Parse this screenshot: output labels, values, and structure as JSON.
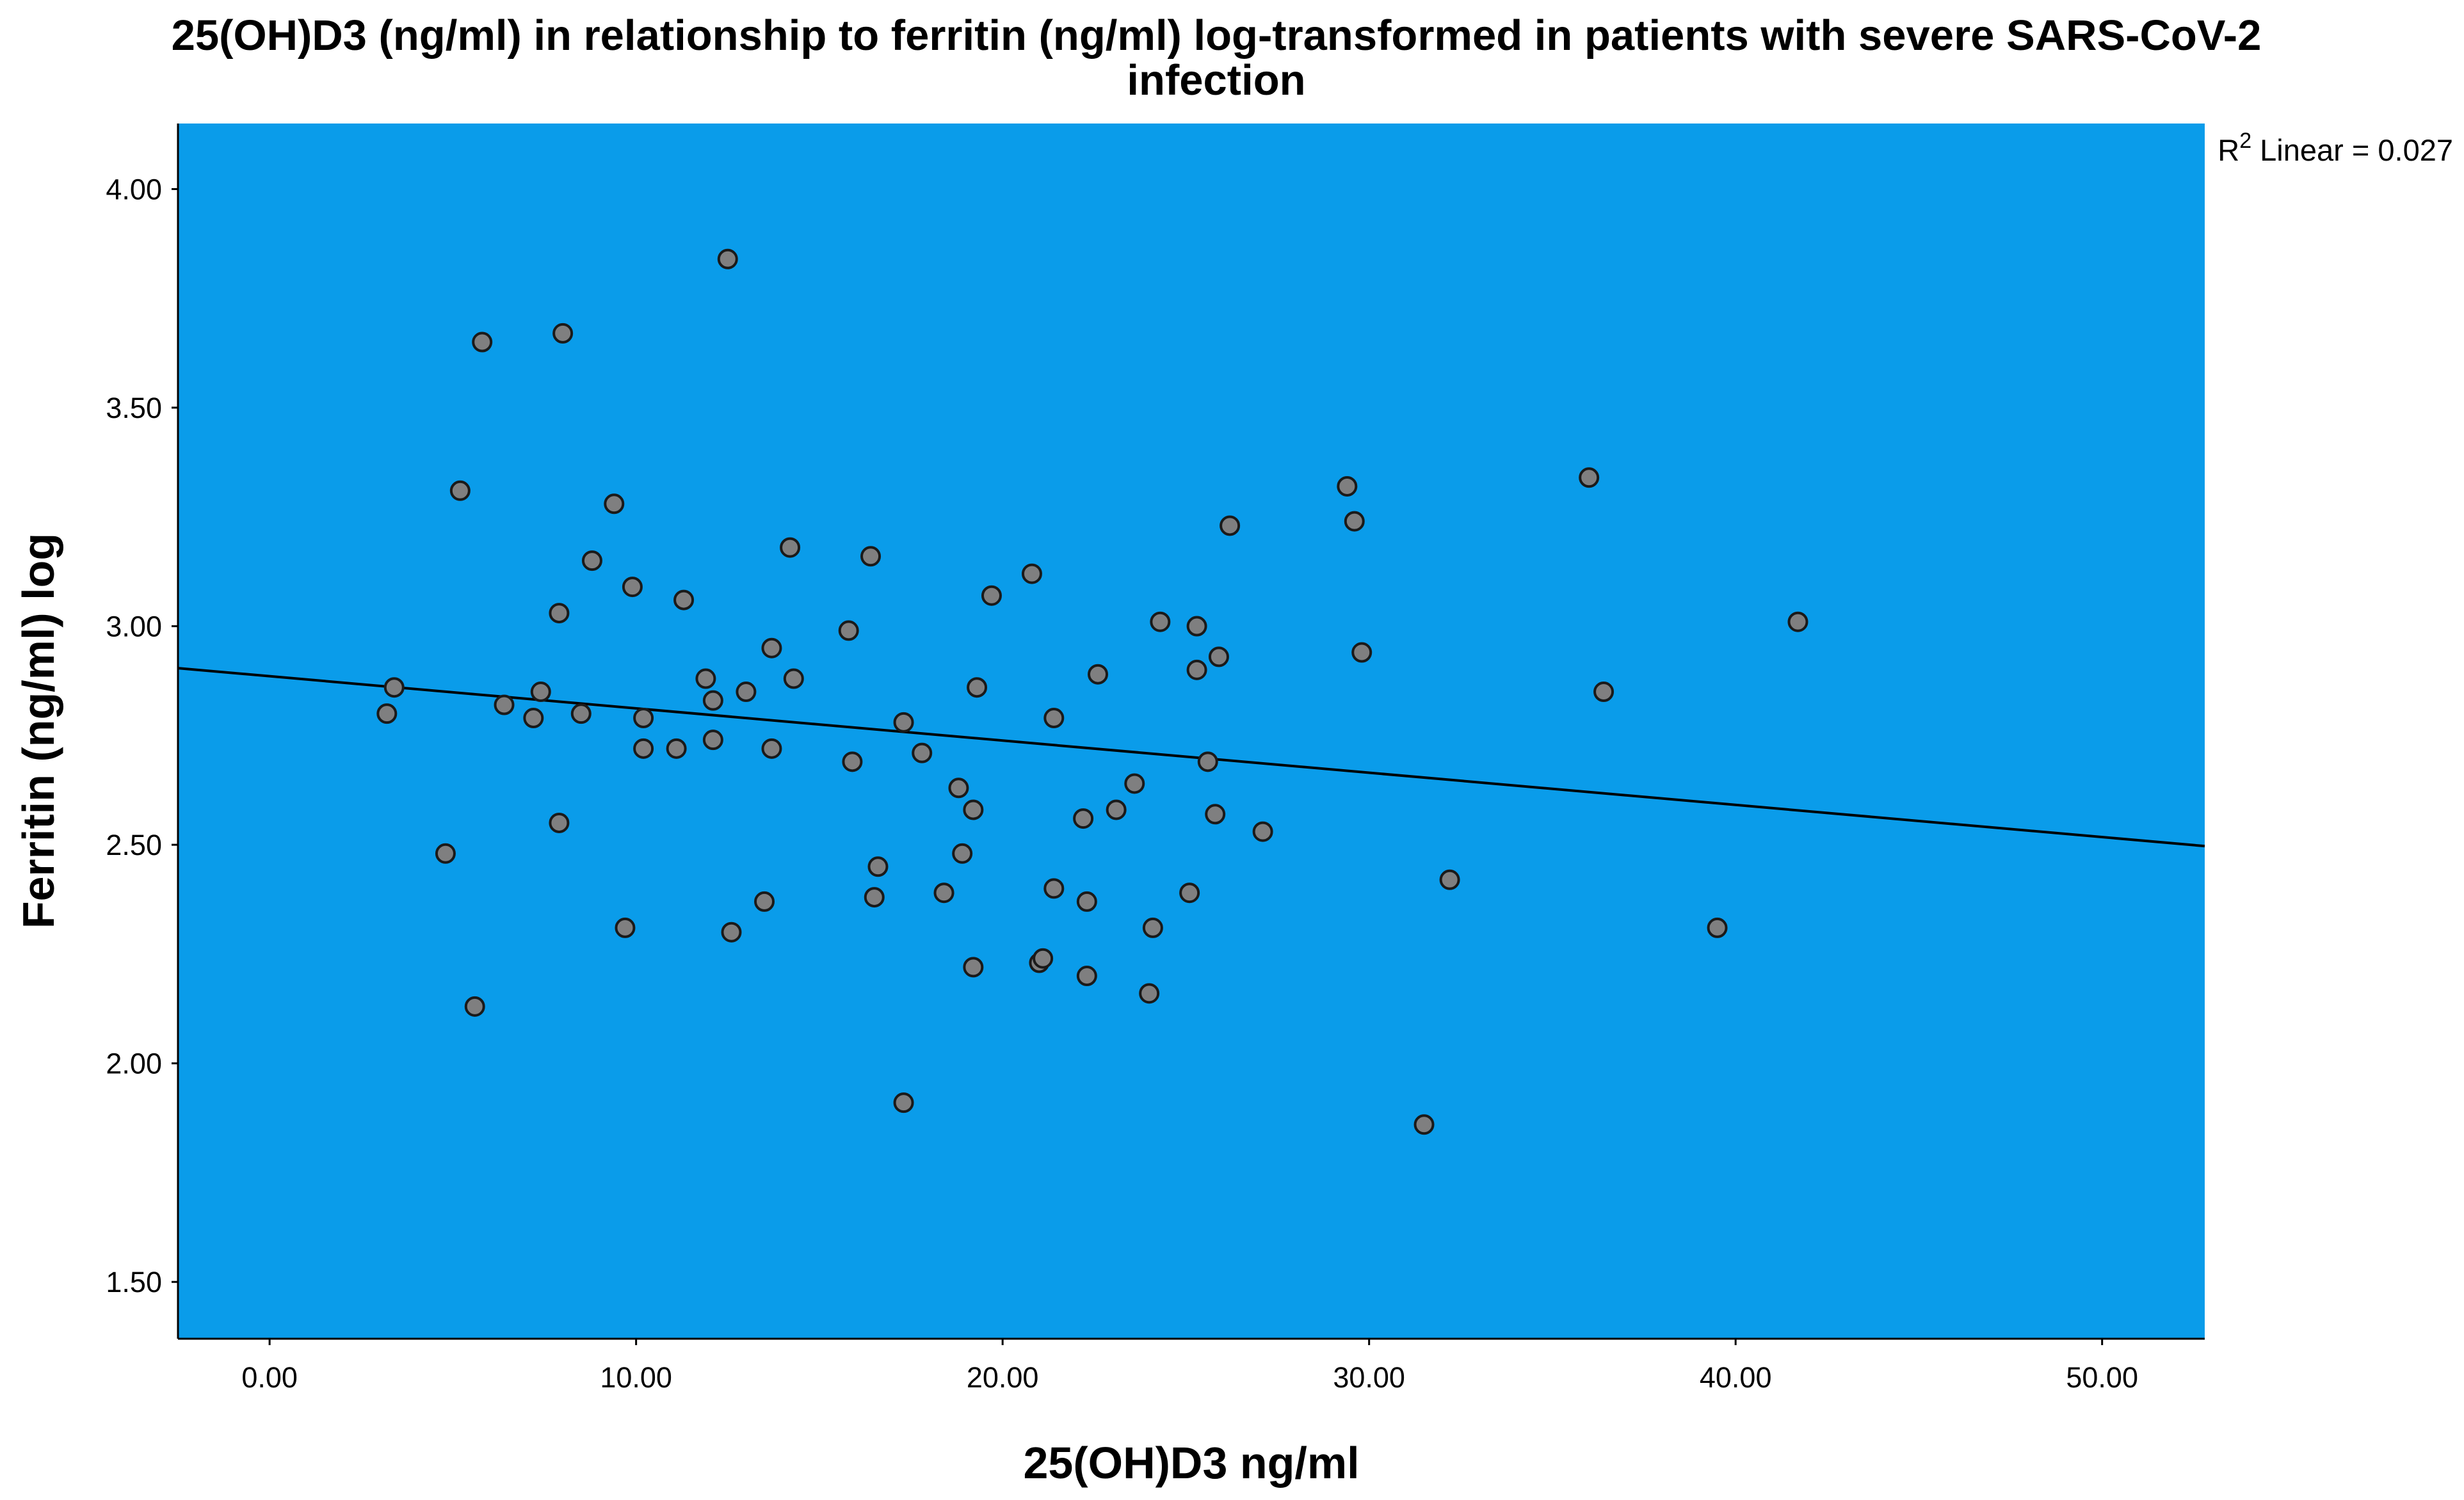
{
  "chart_data": {
    "type": "scatter",
    "title": "25(OH)D3 (ng/ml) in relationship to ferritin (ng/ml) log-transformed in patients with severe SARS-CoV-2 infection",
    "title_lines": [
      "25(OH)D3 (ng/ml) in relationship to ferritin (ng/ml) log-transformed in patients with severe SARS-CoV-2",
      "infection"
    ],
    "xlabel": "25(OH)D3 ng/ml",
    "ylabel": "Ferritin (ng/ml) log",
    "xlim": [
      -2.5,
      52.8
    ],
    "ylim": [
      1.37,
      4.15
    ],
    "xticks": [
      0,
      10,
      20,
      30,
      40,
      50
    ],
    "xtick_labels": [
      "0.00",
      "10.00",
      "20.00",
      "30.00",
      "40.00",
      "50.00"
    ],
    "yticks": [
      1.5,
      2.0,
      2.5,
      3.0,
      3.5,
      4.0
    ],
    "ytick_labels": [
      "1.50",
      "2.00",
      "2.50",
      "3.00",
      "3.50",
      "4.00"
    ],
    "r2_label": {
      "base": "R",
      "sup": "2",
      "rest": " Linear = 0.027"
    },
    "fit_line": {
      "x": [
        -2.5,
        52.8
      ],
      "y": [
        2.904,
        2.497
      ]
    },
    "colors": {
      "plot_bg": "#0a9cea",
      "point_fill": "#7f7f80",
      "point_stroke": "#1a1a1a",
      "line": "#000000"
    },
    "points": [
      {
        "x": 3.2,
        "y": 2.8
      },
      {
        "x": 3.4,
        "y": 2.86
      },
      {
        "x": 4.8,
        "y": 2.48
      },
      {
        "x": 5.2,
        "y": 3.31
      },
      {
        "x": 5.6,
        "y": 2.13
      },
      {
        "x": 5.8,
        "y": 3.65
      },
      {
        "x": 6.4,
        "y": 2.82
      },
      {
        "x": 7.2,
        "y": 2.79
      },
      {
        "x": 7.4,
        "y": 2.85
      },
      {
        "x": 7.9,
        "y": 3.03
      },
      {
        "x": 7.9,
        "y": 2.55
      },
      {
        "x": 8.0,
        "y": 3.67
      },
      {
        "x": 8.5,
        "y": 2.8
      },
      {
        "x": 8.8,
        "y": 3.15
      },
      {
        "x": 9.4,
        "y": 3.28
      },
      {
        "x": 9.7,
        "y": 2.31
      },
      {
        "x": 9.9,
        "y": 3.09
      },
      {
        "x": 10.2,
        "y": 2.79
      },
      {
        "x": 10.2,
        "y": 2.72
      },
      {
        "x": 11.1,
        "y": 2.72
      },
      {
        "x": 11.3,
        "y": 3.06
      },
      {
        "x": 11.9,
        "y": 2.88
      },
      {
        "x": 12.1,
        "y": 2.83
      },
      {
        "x": 12.1,
        "y": 2.74
      },
      {
        "x": 12.5,
        "y": 3.84
      },
      {
        "x": 12.6,
        "y": 2.3
      },
      {
        "x": 13.0,
        "y": 2.85
      },
      {
        "x": 13.5,
        "y": 2.37
      },
      {
        "x": 13.7,
        "y": 2.95
      },
      {
        "x": 13.7,
        "y": 2.72
      },
      {
        "x": 14.2,
        "y": 3.18
      },
      {
        "x": 14.3,
        "y": 2.88
      },
      {
        "x": 15.8,
        "y": 2.99
      },
      {
        "x": 15.9,
        "y": 2.69
      },
      {
        "x": 16.4,
        "y": 3.16
      },
      {
        "x": 16.5,
        "y": 2.38
      },
      {
        "x": 16.6,
        "y": 2.45
      },
      {
        "x": 17.3,
        "y": 2.78
      },
      {
        "x": 17.3,
        "y": 1.91
      },
      {
        "x": 17.8,
        "y": 2.71
      },
      {
        "x": 18.4,
        "y": 2.39
      },
      {
        "x": 18.8,
        "y": 2.63
      },
      {
        "x": 18.9,
        "y": 2.48
      },
      {
        "x": 19.2,
        "y": 2.58
      },
      {
        "x": 19.2,
        "y": 2.22
      },
      {
        "x": 19.3,
        "y": 2.86
      },
      {
        "x": 19.7,
        "y": 3.07
      },
      {
        "x": 20.8,
        "y": 3.12
      },
      {
        "x": 21.0,
        "y": 2.23
      },
      {
        "x": 21.1,
        "y": 2.24
      },
      {
        "x": 21.4,
        "y": 2.79
      },
      {
        "x": 21.4,
        "y": 2.4
      },
      {
        "x": 22.2,
        "y": 2.56
      },
      {
        "x": 22.3,
        "y": 2.37
      },
      {
        "x": 22.3,
        "y": 2.2
      },
      {
        "x": 22.6,
        "y": 2.89
      },
      {
        "x": 23.1,
        "y": 2.58
      },
      {
        "x": 23.6,
        "y": 2.64
      },
      {
        "x": 24.1,
        "y": 2.31
      },
      {
        "x": 24.0,
        "y": 2.16
      },
      {
        "x": 24.3,
        "y": 3.01
      },
      {
        "x": 25.1,
        "y": 2.39
      },
      {
        "x": 25.3,
        "y": 3.0
      },
      {
        "x": 25.3,
        "y": 2.9
      },
      {
        "x": 25.6,
        "y": 2.69
      },
      {
        "x": 25.8,
        "y": 2.57
      },
      {
        "x": 25.9,
        "y": 2.93
      },
      {
        "x": 26.2,
        "y": 3.23
      },
      {
        "x": 27.1,
        "y": 2.53
      },
      {
        "x": 29.4,
        "y": 3.32
      },
      {
        "x": 29.6,
        "y": 3.24
      },
      {
        "x": 29.8,
        "y": 2.94
      },
      {
        "x": 31.5,
        "y": 1.86
      },
      {
        "x": 32.2,
        "y": 2.42
      },
      {
        "x": 36.0,
        "y": 3.34
      },
      {
        "x": 36.4,
        "y": 2.85
      },
      {
        "x": 39.5,
        "y": 2.31
      },
      {
        "x": 41.7,
        "y": 3.01
      }
    ]
  }
}
